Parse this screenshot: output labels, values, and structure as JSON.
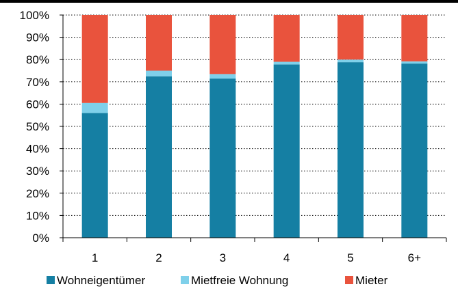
{
  "chart_data": {
    "type": "bar",
    "stacked": true,
    "categories": [
      "1",
      "2",
      "3",
      "4",
      "5",
      "6+"
    ],
    "series": [
      {
        "name": "Wohneigentümer",
        "color": "#157fa3",
        "values": [
          56,
          72.5,
          71.5,
          77.8,
          78.8,
          78.2
        ]
      },
      {
        "name": "Mietfreie Wohnung",
        "color": "#7fd0ea",
        "values": [
          4.5,
          2.5,
          2,
          1.2,
          1.2,
          1
        ]
      },
      {
        "name": "Mieter",
        "color": "#e9533d",
        "values": [
          39.5,
          25,
          26.5,
          21,
          20,
          20.8
        ]
      }
    ],
    "ylim": [
      0,
      100
    ],
    "y_ticks": [
      "0%",
      "10%",
      "20%",
      "30%",
      "40%",
      "50%",
      "60%",
      "70%",
      "80%",
      "90%",
      "100%"
    ],
    "grid": true,
    "grid_style": "dotted",
    "legend_position": "bottom"
  }
}
